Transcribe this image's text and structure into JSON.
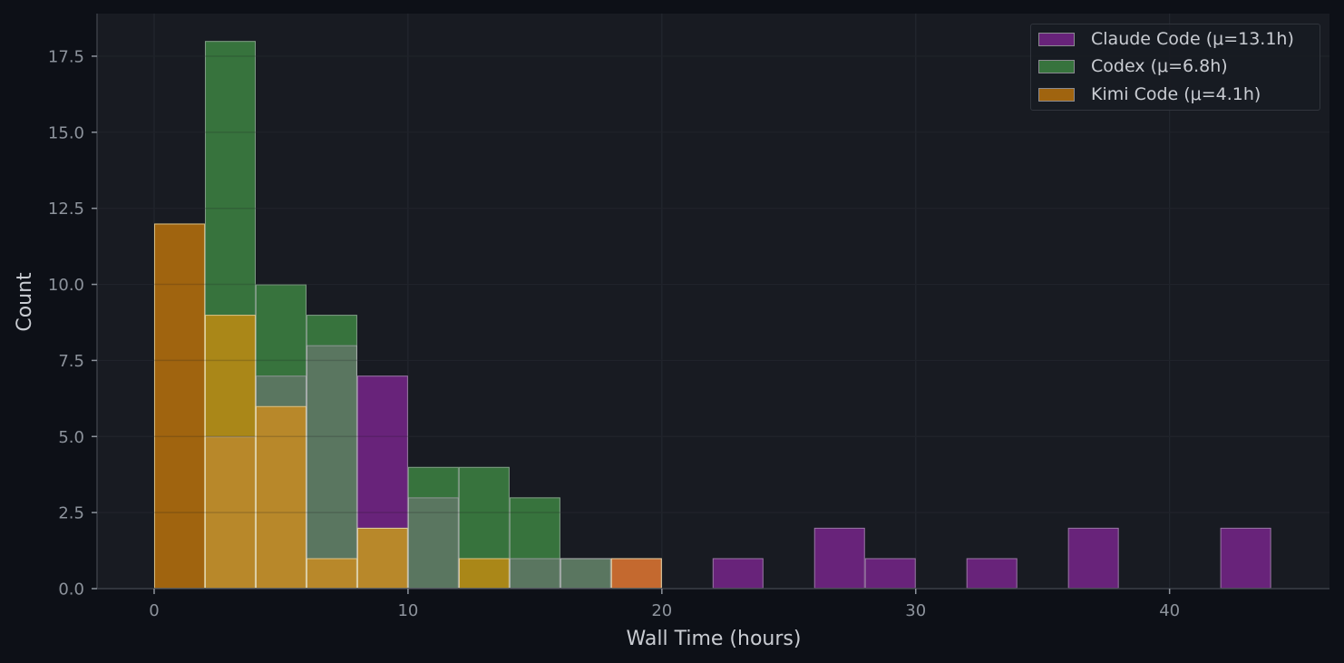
{
  "chart_data": {
    "type": "bar",
    "subtype": "overlapping-histogram",
    "title": "",
    "xlabel": "Wall Time (hours)",
    "ylabel": "Count",
    "xlim": [
      -2.25,
      46.3
    ],
    "ylim": [
      0,
      18.9
    ],
    "bin_width": 2,
    "bin_edges": [
      0,
      2,
      4,
      6,
      8,
      10,
      12,
      14,
      16,
      18,
      20,
      22,
      24,
      26,
      28,
      30,
      32,
      34,
      36,
      38,
      40,
      42,
      44
    ],
    "x_ticks": [
      0,
      10,
      20,
      30,
      40
    ],
    "x_tick_labels": [
      "0",
      "10",
      "20",
      "30",
      "40"
    ],
    "y_ticks": [
      0,
      2.5,
      5,
      7.5,
      10,
      12.5,
      15,
      17.5
    ],
    "y_tick_labels": [
      "0.0",
      "2.5",
      "5.0",
      "7.5",
      "10.0",
      "12.5",
      "15.0",
      "17.5"
    ],
    "grid": true,
    "legend_position": "upper right",
    "series": [
      {
        "name": "Claude Code (μ=13.1h)",
        "key": "claude",
        "color": "#68237a",
        "values": [
          0,
          5,
          7,
          8,
          7,
          3,
          0,
          1,
          1,
          1,
          0,
          1,
          0,
          2,
          1,
          0,
          1,
          0,
          2,
          0,
          0,
          2
        ]
      },
      {
        "name": "Codex (μ=6.8h)",
        "key": "codex",
        "color": "#37733d",
        "values": [
          0,
          18,
          10,
          9,
          2,
          4,
          4,
          3,
          1,
          0,
          0,
          0,
          0,
          0,
          0,
          0,
          0,
          0,
          0,
          0,
          0,
          0
        ]
      },
      {
        "name": "Kimi Code (μ=4.1h)",
        "key": "kimi",
        "color": "#a0640f",
        "values": [
          12,
          9,
          6,
          1,
          2,
          0,
          1,
          0,
          0,
          1,
          0,
          0,
          0,
          0,
          0,
          0,
          0,
          0,
          0,
          0,
          0,
          0
        ]
      }
    ]
  },
  "overlap_colors": {
    "claude": "#68237a",
    "codex": "#37733d",
    "kimi": "#a0640f",
    "claude+codex": "#5a7660",
    "codex+kimi": "#aa8718",
    "claude+kimi": "#c4692f",
    "claude+codex+kimi": "#b8882a"
  },
  "theme": {
    "figure_bg": "#0d1017",
    "axes_bg": "#181b22",
    "grid_color": "#23272f",
    "spine_color": "#3a3e46",
    "tick_label_color": "#8d939c",
    "axis_label_color": "#c9ccd2"
  },
  "legend": {
    "items": [
      {
        "label": "Claude Code (μ=13.1h)",
        "color": "#68237a"
      },
      {
        "label": "Codex (μ=6.8h)",
        "color": "#37733d"
      },
      {
        "label": "Kimi Code (μ=4.1h)",
        "color": "#a0640f"
      }
    ]
  }
}
